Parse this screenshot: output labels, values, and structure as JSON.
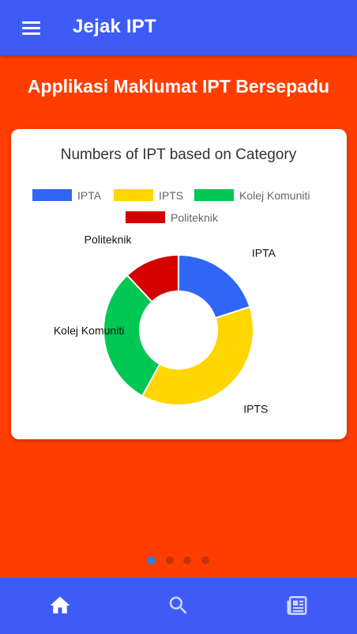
{
  "app": {
    "title": "Jejak IPT",
    "menu_icon": "menu-icon"
  },
  "headline": "Applikasi Maklumat IPT Bersepadu",
  "carousel": {
    "page_count": 4,
    "active_index": 0
  },
  "bottom_nav": {
    "items": [
      {
        "icon": "home-icon",
        "active": true
      },
      {
        "icon": "search-icon",
        "active": false
      },
      {
        "icon": "news-icon",
        "active": false
      }
    ]
  },
  "colors": {
    "app_bar": "#3f5bf6",
    "background": "#ff3d00",
    "IPTA": "#2f66f5",
    "IPTS": "#ffd600",
    "Kolej Komuniti": "#00c853",
    "Politeknik": "#d50000"
  },
  "chart_data": {
    "type": "pie",
    "variant": "doughnut",
    "title": "Numbers of IPT based on Category",
    "legend_position": "top",
    "categories": [
      "IPTA",
      "IPTS",
      "Kolej Komuniti",
      "Politeknik"
    ],
    "values": [
      20,
      38,
      30,
      12
    ],
    "colors": [
      "#2f66f5",
      "#ffd600",
      "#00c853",
      "#d50000"
    ]
  }
}
